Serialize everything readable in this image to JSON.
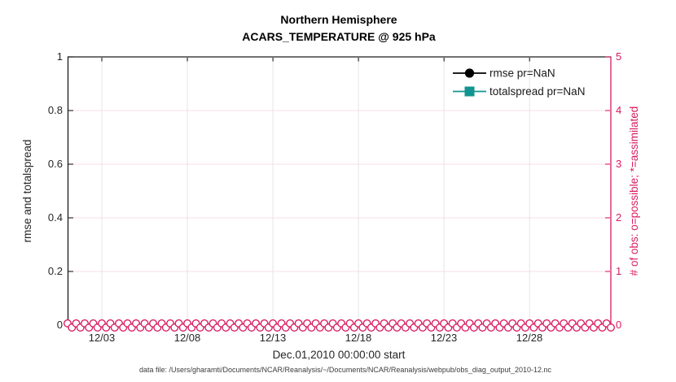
{
  "figure": {
    "title_line1": "Northern Hemisphere",
    "title_line2": "ACARS_TEMPERATURE @ 925 hPa",
    "xlabel": "Dec.01,2010 00:00:00 start",
    "footnote": "data file: /Users/gharamti/Documents/NCAR/Reanalysis/~/Documents/NCAR/Reanalysis/webpub/obs_diag_output_2010-12.nc"
  },
  "colors": {
    "obs_pink": "#D81B60",
    "grid_pink": "#F8DDE8",
    "grid_gray": "#E2E2E2",
    "axis_dark": "#1A1A1A",
    "rmse_black": "#000000",
    "totalspread_teal": "#129490"
  },
  "axes": {
    "left": {
      "label": "rmse and totalspread",
      "tick_labels": [
        "0",
        "0.2",
        "0.4",
        "0.6",
        "0.8",
        "1"
      ]
    },
    "right": {
      "label": "# of obs: o=possible; *=assimilated",
      "tick_labels": [
        "0",
        "1",
        "2",
        "3",
        "4",
        "5"
      ]
    },
    "x": {
      "tick_labels": [
        "12/03",
        "12/08",
        "12/13",
        "12/18",
        "12/23",
        "12/28"
      ]
    }
  },
  "legend": {
    "items": [
      {
        "label": "rmse pr=NaN",
        "marker": "filled-circle",
        "color": "#000000"
      },
      {
        "label": "totalspread pr=NaN",
        "marker": "filled-square",
        "color": "#129490"
      }
    ]
  },
  "chart_data": {
    "type": "line",
    "title": "Northern Hemisphere",
    "subtitle": "ACARS_TEMPERATURE @ 925 hPa",
    "xlabel": "Dec.01,2010 00:00:00 start",
    "x_tick_labels": [
      "12/03",
      "12/08",
      "12/13",
      "12/18",
      "12/23",
      "12/28"
    ],
    "x_tick_days_from_start": [
      2,
      7,
      12,
      17,
      22,
      27
    ],
    "x_range_days": [
      0,
      31.75
    ],
    "x_start": "Dec.01,2010 00:00:00",
    "y_left": {
      "label": "rmse and totalspread",
      "lim": [
        0,
        1
      ],
      "ticks": [
        0,
        0.2,
        0.4,
        0.6,
        0.8,
        1
      ]
    },
    "y_right": {
      "label": "# of obs: o=possible; *=assimilated",
      "lim": [
        0,
        5
      ],
      "ticks": [
        0,
        1,
        2,
        3,
        4,
        5
      ]
    },
    "grid": true,
    "legend_position": "upper right inside, no box",
    "series": [
      {
        "name": "rmse pr=NaN",
        "axis": "left",
        "color": "#000000",
        "marker": "filled-circle",
        "values": "all NaN (no curve drawn)"
      },
      {
        "name": "totalspread pr=NaN",
        "axis": "left",
        "color": "#129490",
        "marker": "filled-square",
        "values": "all NaN (no curve drawn)"
      },
      {
        "name": "# of obs possible",
        "axis": "right",
        "color": "#D81B60",
        "marker": "o",
        "value_constant": 0,
        "points_every_hours": 6,
        "n_points": 128
      },
      {
        "name": "# of obs assimilated",
        "axis": "right",
        "color": "#D81B60",
        "marker": "*",
        "value_constant": 0,
        "points_every_hours": 6,
        "n_points": 128
      }
    ]
  }
}
